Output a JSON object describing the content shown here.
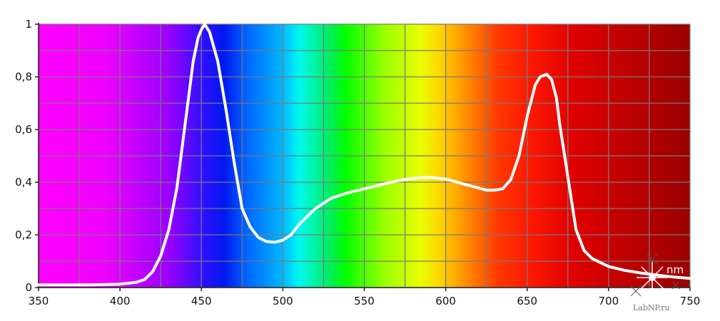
{
  "chart_data": {
    "type": "line",
    "title": "",
    "xlabel": "nm",
    "ylabel": "",
    "xlim": [
      350,
      750
    ],
    "ylim": [
      0,
      1
    ],
    "x_ticks": [
      350,
      400,
      450,
      500,
      550,
      600,
      650,
      700,
      750
    ],
    "x_tick_labels": [
      "350",
      "400",
      "450",
      "500",
      "550",
      "600",
      "650",
      "700",
      "750"
    ],
    "y_ticks": [
      0,
      0.2,
      0.4,
      0.6,
      0.8,
      1
    ],
    "y_tick_labels": [
      "0",
      "0,2",
      "0,4",
      "0,6",
      "0,8",
      "1"
    ],
    "grid": true,
    "background": "visible-spectrum gradient",
    "line_color": "#ffffff",
    "series": [
      {
        "x": [
          350,
          380,
          400,
          410,
          415,
          420,
          425,
          430,
          435,
          440,
          445,
          448,
          450,
          452,
          455,
          460,
          465,
          470,
          475,
          480,
          485,
          490,
          495,
          500,
          505,
          510,
          515,
          520,
          525,
          530,
          540,
          550,
          560,
          570,
          580,
          590,
          600,
          610,
          620,
          625,
          630,
          635,
          640,
          645,
          650,
          655,
          658,
          662,
          665,
          668,
          670,
          675,
          680,
          685,
          690,
          700,
          710,
          720,
          730,
          740,
          750
        ],
        "y": [
          0.01,
          0.01,
          0.013,
          0.02,
          0.03,
          0.06,
          0.12,
          0.22,
          0.38,
          0.62,
          0.86,
          0.95,
          0.98,
          1.0,
          0.97,
          0.86,
          0.68,
          0.48,
          0.3,
          0.23,
          0.19,
          0.175,
          0.172,
          0.18,
          0.2,
          0.24,
          0.27,
          0.3,
          0.32,
          0.34,
          0.36,
          0.375,
          0.39,
          0.405,
          0.415,
          0.418,
          0.412,
          0.395,
          0.378,
          0.37,
          0.37,
          0.375,
          0.41,
          0.5,
          0.65,
          0.77,
          0.8,
          0.81,
          0.79,
          0.72,
          0.62,
          0.42,
          0.22,
          0.14,
          0.11,
          0.08,
          0.065,
          0.055,
          0.047,
          0.04,
          0.035
        ]
      }
    ]
  },
  "watermark": "LabNP.ru",
  "watermark_logo_icon": "star-burst-icon"
}
